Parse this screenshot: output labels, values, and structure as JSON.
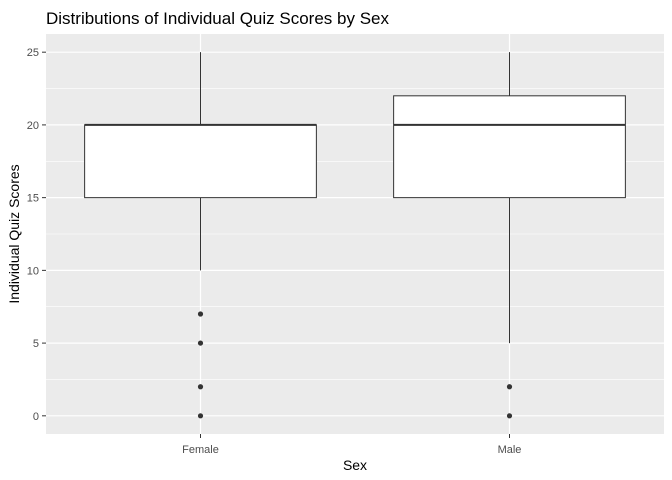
{
  "chart_data": {
    "type": "boxplot",
    "title": "Distributions of Individual Quiz Scores by Sex",
    "xlabel": "Sex",
    "ylabel": "Individual Quiz Scores",
    "categories": [
      "Female",
      "Male"
    ],
    "ylim": [
      -1.25,
      26.25
    ],
    "yticks": [
      0,
      5,
      10,
      15,
      20,
      25
    ],
    "ytick_labels": [
      "0",
      "5",
      "10",
      "15",
      "20",
      "25"
    ],
    "grid": true,
    "boxes": [
      {
        "category": "Female",
        "whisker_low": 10,
        "q1": 15,
        "median": 20,
        "q3": 20,
        "whisker_high": 25,
        "outliers": [
          0,
          2,
          5,
          7
        ]
      },
      {
        "category": "Male",
        "whisker_low": 5,
        "q1": 15,
        "median": 20,
        "q3": 22,
        "whisker_high": 25,
        "outliers": [
          0,
          2
        ]
      }
    ],
    "colors": {
      "panel_bg": "#ebebeb",
      "grid": "#ffffff",
      "box_fill": "#ffffff",
      "box_line": "#333333",
      "outlier": "#333333"
    }
  }
}
